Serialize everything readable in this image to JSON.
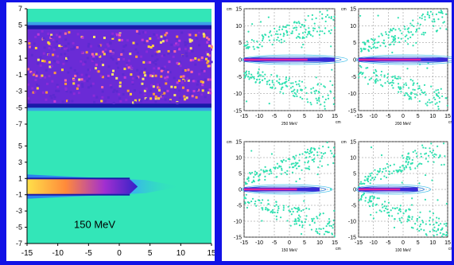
{
  "chart_data": [
    {
      "type": "heatmap",
      "annotation": "150 MeV",
      "x_ticks": [
        "-15",
        "-10",
        "-5",
        "0",
        "5",
        "10",
        "15"
      ],
      "y_ticks": [
        "7",
        "5",
        "3",
        "1",
        "-1",
        "-3",
        "-5",
        "-7",
        "5",
        "3",
        "1",
        "-1",
        "-3",
        "-5",
        "-7"
      ],
      "xlim": [
        -15,
        15
      ],
      "top_band": {
        "ylim": [
          -7,
          7
        ],
        "band": [
          -5,
          5
        ]
      },
      "bottom_band": {
        "ylim": [
          -7,
          7
        ],
        "band": [
          -1,
          1
        ],
        "beam_end_x": 3
      },
      "colors": {
        "background": "#33e6b8",
        "band": "#6a2bd6",
        "hot": "#ffd23a",
        "edge": "#1a1aa8"
      }
    },
    {
      "type": "scatter",
      "label": "250 MeV",
      "unit": "cm",
      "x_ticks": [
        "-15",
        "-10",
        "-5",
        "0",
        "5",
        "10",
        "15"
      ],
      "y_ticks": [
        "15",
        "10",
        "5",
        "0",
        "-5",
        "-10",
        "-15"
      ],
      "xlim": [
        -15,
        15
      ],
      "ylim": [
        -15,
        15
      ],
      "envelope": {
        "x": [
          -15,
          15
        ],
        "upper": [
          4,
          12
        ],
        "lower": [
          -4,
          -12
        ]
      },
      "beam": {
        "x": [
          -15,
          15
        ],
        "y": 0
      }
    },
    {
      "type": "scatter",
      "label": "200 MeV",
      "unit": "cm",
      "x_ticks": [
        "-15",
        "-10",
        "-5",
        "0",
        "5",
        "10",
        "15"
      ],
      "y_ticks": [
        "15",
        "10",
        "5",
        "0",
        "-5",
        "-10",
        "-15"
      ],
      "xlim": [
        -15,
        15
      ],
      "ylim": [
        -15,
        15
      ],
      "envelope": {
        "x": [
          -15,
          15
        ],
        "upper": [
          3,
          13
        ],
        "lower": [
          -3,
          -13
        ]
      },
      "beam": {
        "x": [
          -15,
          15
        ],
        "y": 0
      }
    },
    {
      "type": "scatter",
      "label": "150 MeV",
      "unit": "cm",
      "x_ticks": [
        "-15",
        "-10",
        "-5",
        "0",
        "5",
        "10",
        "15"
      ],
      "y_ticks": [
        "15",
        "10",
        "5",
        "0",
        "-5",
        "-10",
        "-15"
      ],
      "xlim": [
        -15,
        15
      ],
      "ylim": [
        -15,
        15
      ],
      "envelope": {
        "x": [
          -15,
          15
        ],
        "upper": [
          3,
          12
        ],
        "lower": [
          -3,
          -12
        ]
      },
      "beam": {
        "x": [
          -15,
          10
        ],
        "y": 0
      }
    },
    {
      "type": "scatter",
      "label": "100 MeV",
      "unit": "cm",
      "x_ticks": [
        "-15",
        "-10",
        "-5",
        "0",
        "5",
        "10",
        "15"
      ],
      "y_ticks": [
        "15",
        "10",
        "5",
        "0",
        "-5",
        "-10",
        "-15"
      ],
      "xlim": [
        -15,
        15
      ],
      "ylim": [
        -15,
        15
      ],
      "envelope": {
        "x": [
          -15,
          15
        ],
        "upper": [
          2,
          14
        ],
        "lower": [
          -2,
          -14
        ]
      },
      "beam": {
        "x": [
          -15,
          5
        ],
        "y": 0
      }
    }
  ]
}
